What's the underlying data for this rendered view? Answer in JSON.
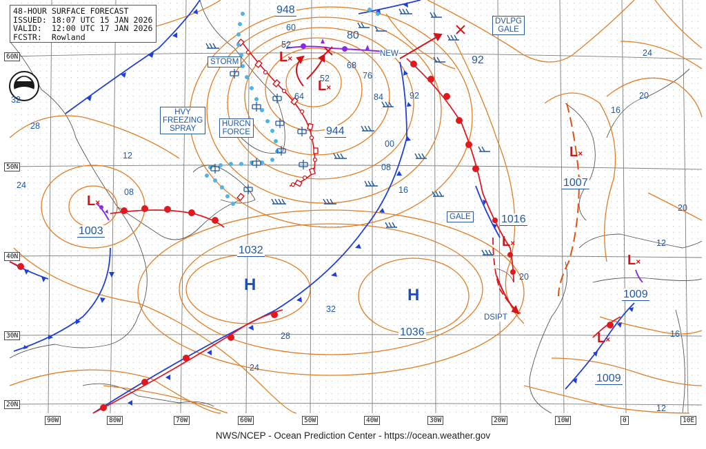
{
  "header": {
    "line1": "48-HOUR SURFACE FORECAST",
    "line2": "ISSUED: 18:07 UTC 15 JAN 2026",
    "line3": "VALID:  12:00 UTC 17 JAN 2026",
    "line4": "FCSTR:  Rowland"
  },
  "footer": "NWS/NCEP - Ocean Prediction Center - https://ocean.weather.gov",
  "latitude_labels": [
    "60N",
    "50N",
    "40N",
    "30N",
    "20N"
  ],
  "longitude_labels": [
    "90W",
    "80W",
    "70W",
    "60W",
    "50W",
    "40W",
    "30W",
    "20W",
    "10W",
    "0",
    "10E"
  ],
  "warnings": {
    "storm": "STORM",
    "hvy_spray": [
      "HVY",
      "FREEZING",
      "SPRAY"
    ],
    "hurcn": [
      "HURCN",
      "FORCE"
    ],
    "dvlpg": [
      "DVLPG",
      "GALE"
    ],
    "gale": "GALE"
  },
  "pressure_centers": {
    "low_948": "948",
    "low_944": "944",
    "low_1003": "1003",
    "high_1032": "1032",
    "high_1036": "1036",
    "low_1016": "1016",
    "low_1007": "1007",
    "low_1009_a": "1009",
    "low_1009_b": "1009"
  },
  "high_symbol": "H",
  "isobar_labels": {
    "i60": "60",
    "i52a": "52",
    "i52b": "52",
    "i64": "64",
    "i80": "80",
    "i68": "68",
    "i76": "76",
    "i84": "84",
    "i92a": "92",
    "i92b": "92",
    "i00": "00",
    "i08a": "08",
    "i08b": "08",
    "i12": "12",
    "i16a": "16",
    "i16b": "16",
    "i20a": "20",
    "i20b": "20",
    "i20c": "20",
    "i24a": "24",
    "i24b": "24",
    "i24c": "24",
    "i28a": "28",
    "i28b": "28",
    "i32a": "32",
    "i32b": "32",
    "i12b": "12",
    "i12c": "12",
    "i16c": "16"
  },
  "annotations": {
    "new": "NEW",
    "dsipt": "DSIPT"
  },
  "colors": {
    "isobar": "#e27c22",
    "cold_front": "#1f3fd8",
    "warm_front": "#e0191f",
    "text_blue": "#1f57a5",
    "occluded": "#8a2be2",
    "grid": "#7b7b7b",
    "storm_red": "#d4141a",
    "ice": "#4fb3e6"
  }
}
